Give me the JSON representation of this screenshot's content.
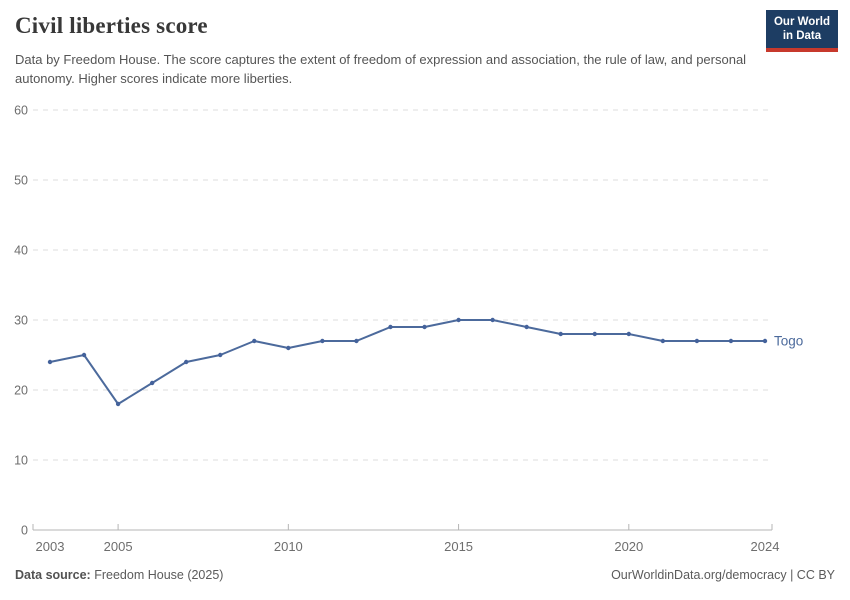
{
  "header": {
    "title": "Civil liberties score",
    "subtitle": "Data by Freedom House. The score captures the extent of freedom of expression and association, the rule of law, and personal autonomy. Higher scores indicate more liberties.",
    "logo": {
      "line1": "Our World",
      "line2": "in Data"
    }
  },
  "chart_data": {
    "type": "line",
    "title": "Civil liberties score",
    "xlabel": "",
    "ylabel": "",
    "xlim": [
      2003,
      2024
    ],
    "ylim": [
      0,
      60
    ],
    "xticks": [
      2003,
      2005,
      2010,
      2015,
      2020,
      2024
    ],
    "yticks": [
      0,
      10,
      20,
      30,
      40,
      50,
      60
    ],
    "grid": "horizontal-dashed",
    "legend_position": "end-of-line-label",
    "series": [
      {
        "name": "Togo",
        "color": "#4C6A9C",
        "x": [
          2003,
          2004,
          2005,
          2006,
          2007,
          2008,
          2009,
          2010,
          2011,
          2012,
          2013,
          2014,
          2015,
          2016,
          2017,
          2018,
          2019,
          2020,
          2021,
          2022,
          2023,
          2024
        ],
        "values": [
          24,
          25,
          18,
          21,
          24,
          25,
          27,
          26,
          27,
          27,
          29,
          29,
          30,
          30,
          29,
          28,
          28,
          28,
          27,
          27,
          27,
          27
        ]
      }
    ]
  },
  "colors": {
    "line": "#4C6A9C",
    "marker": "#44629b",
    "grid": "#dddddd",
    "axis": "#b5b5b5",
    "tick_label": "#6e6e6e",
    "title": "#383838",
    "subtitle": "#555555",
    "logo_navy": "#1d3d63",
    "logo_red": "#c7392c"
  },
  "footer": {
    "datasource_label": "Data source:",
    "datasource_value": "Freedom House (2025)",
    "license": "OurWorldinData.org/democracy | CC BY"
  }
}
